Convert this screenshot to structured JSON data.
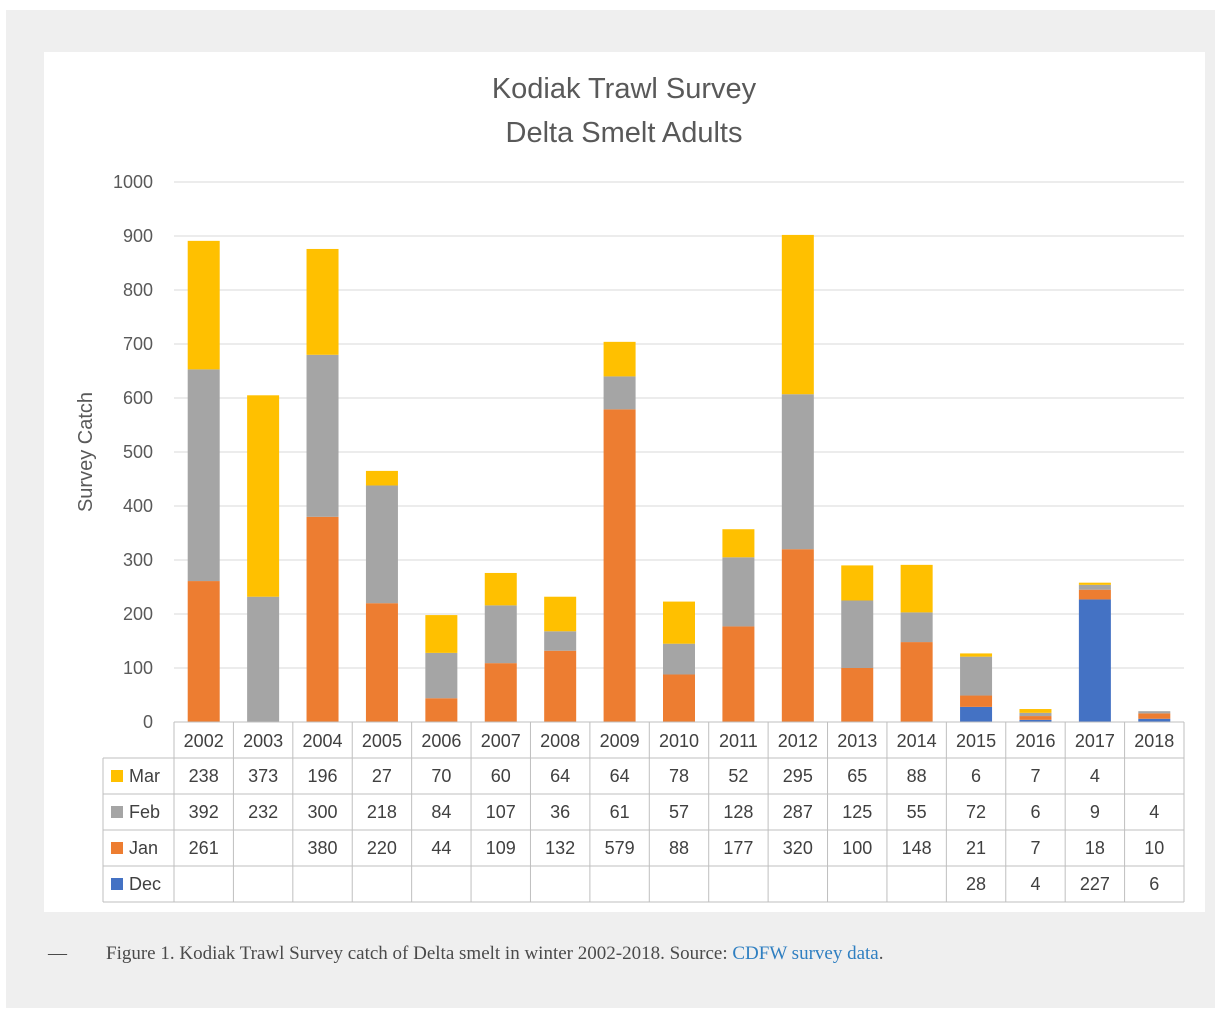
{
  "chart_data": {
    "type": "bar",
    "stacked": true,
    "title": [
      "Kodiak Trawl Survey",
      "Delta Smelt Adults"
    ],
    "ylabel": "Survey Catch",
    "ylim": [
      0,
      1000
    ],
    "yticks": [
      0,
      100,
      200,
      300,
      400,
      500,
      600,
      700,
      800,
      900,
      1000
    ],
    "grid": true,
    "legend_position": "data-table-left",
    "categories": [
      "2002",
      "2003",
      "2004",
      "2005",
      "2006",
      "2007",
      "2008",
      "2009",
      "2010",
      "2011",
      "2012",
      "2013",
      "2014",
      "2015",
      "2016",
      "2017",
      "2018"
    ],
    "stack_order": [
      "Dec",
      "Jan",
      "Feb",
      "Mar"
    ],
    "series": [
      {
        "name": "Mar",
        "color": "#ffc000",
        "values": [
          238,
          373,
          196,
          27,
          70,
          60,
          64,
          64,
          78,
          52,
          295,
          65,
          88,
          6,
          7,
          4,
          null
        ]
      },
      {
        "name": "Feb",
        "color": "#a5a5a5",
        "values": [
          392,
          232,
          300,
          218,
          84,
          107,
          36,
          61,
          57,
          128,
          287,
          125,
          55,
          72,
          6,
          9,
          4
        ]
      },
      {
        "name": "Jan",
        "color": "#ed7d31",
        "values": [
          261,
          null,
          380,
          220,
          44,
          109,
          132,
          579,
          88,
          177,
          320,
          100,
          148,
          21,
          7,
          18,
          10
        ]
      },
      {
        "name": "Dec",
        "color": "#4472c4",
        "values": [
          null,
          null,
          null,
          null,
          null,
          null,
          null,
          null,
          null,
          null,
          null,
          null,
          null,
          28,
          4,
          227,
          6
        ]
      }
    ]
  },
  "caption": {
    "dash": "—",
    "text": "Figure 1. Kodiak Trawl Survey catch of Delta smelt in winter 2002-2018. Source: ",
    "link": "CDFW survey data",
    "end": "."
  }
}
